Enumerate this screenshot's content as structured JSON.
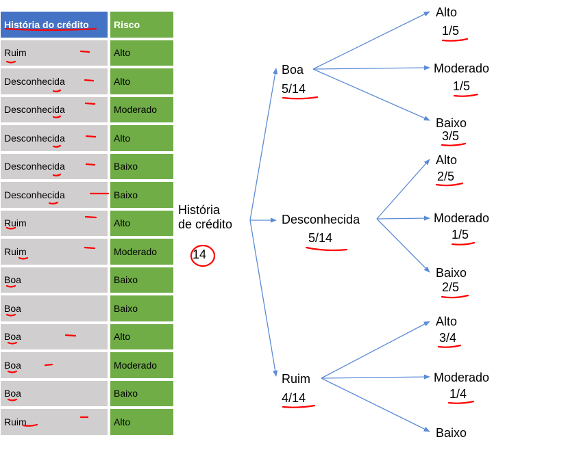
{
  "table": {
    "headers": [
      "História do crédito",
      "Risco"
    ],
    "rows": [
      [
        "Ruim",
        "Alto"
      ],
      [
        "Desconhecida",
        "Alto"
      ],
      [
        "Desconhecida",
        "Moderado"
      ],
      [
        "Desconhecida",
        "Alto"
      ],
      [
        "Desconhecida",
        "Baixo"
      ],
      [
        "Desconhecida",
        "Baixo"
      ],
      [
        "Ruim",
        "Alto"
      ],
      [
        "Ruim",
        "Moderado"
      ],
      [
        "Boa",
        "Baixo"
      ],
      [
        "Boa",
        "Baixo"
      ],
      [
        "Boa",
        "Alto"
      ],
      [
        "Boa",
        "Moderado"
      ],
      [
        "Boa",
        "Baixo"
      ],
      [
        "Ruim",
        "Alto"
      ]
    ]
  },
  "tree": {
    "root": {
      "line1": "História",
      "line2": "de crédito",
      "count": "14"
    },
    "branches": [
      {
        "label": "Boa",
        "fraction": "5/14",
        "leaves": [
          {
            "label": "Alto",
            "fraction": "1/5"
          },
          {
            "label": "Moderado",
            "fraction": "1/5"
          },
          {
            "label": "Baixo",
            "fraction": "3/5"
          }
        ]
      },
      {
        "label": "Desconhecida",
        "fraction": "5/14",
        "leaves": [
          {
            "label": "Alto",
            "fraction": "2/5"
          },
          {
            "label": "Moderado",
            "fraction": "1/5"
          },
          {
            "label": "Baixo",
            "fraction": "2/5"
          }
        ]
      },
      {
        "label": "Ruim",
        "fraction": "4/14",
        "leaves": [
          {
            "label": "Alto",
            "fraction": "3/4"
          },
          {
            "label": "Moderado",
            "fraction": "1/4"
          },
          {
            "label": "Baixo",
            "fraction": ""
          }
        ]
      }
    ]
  },
  "colors": {
    "header_blue": "#4472c4",
    "risk_green": "#70ad47",
    "row_gray": "#d0cece",
    "arrow_blue": "#5b8bd6",
    "annotation_red": "#ff0000"
  }
}
